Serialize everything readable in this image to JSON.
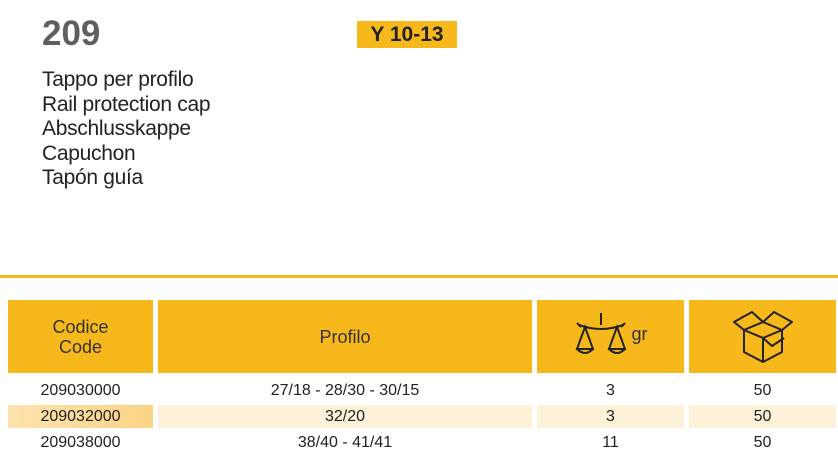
{
  "product": {
    "code": "209",
    "badge": "Y 10-13",
    "names": [
      "Tappo per profilo",
      "Rail protection cap",
      "Abschlusskappe",
      "Capuchon",
      "Tapón guía"
    ]
  },
  "table": {
    "headers": {
      "code_line1": "Codice",
      "code_line2": "Code",
      "profile": "Profilo",
      "weight_icon": "scale-icon",
      "weight_unit": "gr",
      "package_icon": "box-icon"
    },
    "rows": [
      {
        "code": "209030000",
        "profile": "27/18 - 28/30 - 30/15",
        "weight": "3",
        "pack": "50"
      },
      {
        "code": "209032000",
        "profile": "32/20",
        "weight": "3",
        "pack": "50"
      },
      {
        "code": "209038000",
        "profile": "38/40 - 41/41",
        "weight": "11",
        "pack": "50"
      }
    ]
  },
  "colors": {
    "accent": "#F6B81A",
    "row_highlight": "#FDF1D8"
  }
}
